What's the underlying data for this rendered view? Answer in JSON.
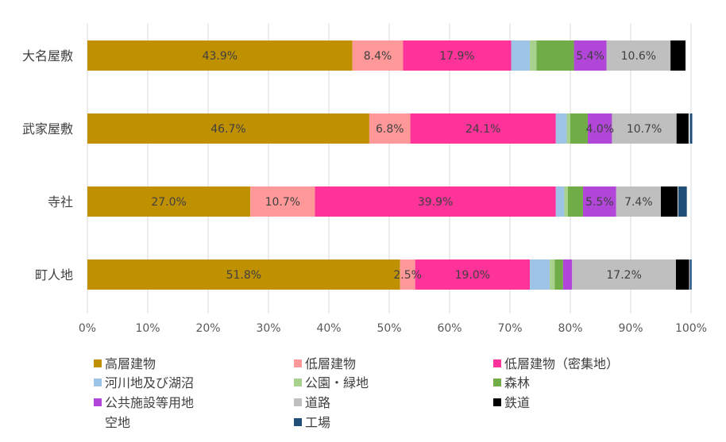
{
  "chart_data": {
    "type": "bar",
    "orientation": "horizontal",
    "stacked": "percent",
    "categories": [
      "大名屋敷",
      "武家屋敷",
      "寺社",
      "町人地"
    ],
    "xlim": [
      0,
      100
    ],
    "x_ticks": [
      "0%",
      "10%",
      "20%",
      "30%",
      "40%",
      "50%",
      "60%",
      "70%",
      "80%",
      "90%",
      "100%"
    ],
    "grid": "vertical",
    "legend_position": "bottom",
    "series": [
      {
        "name": "高層建物",
        "color": "#BF9000",
        "values": [
          43.9,
          46.7,
          27.0,
          51.8
        ],
        "labels": [
          "43.9%",
          "46.7%",
          "27.0%",
          "51.8%"
        ]
      },
      {
        "name": "低層建物",
        "color": "#FF9999",
        "values": [
          8.4,
          6.8,
          10.7,
          2.5
        ],
        "labels": [
          "8.4%",
          "6.8%",
          "10.7%",
          "2.5%"
        ]
      },
      {
        "name": "低層建物（密集地）",
        "color": "#FF3399",
        "values": [
          17.9,
          24.1,
          39.9,
          19.0
        ],
        "labels": [
          "17.9%",
          "24.1%",
          "39.9%",
          "19.0%"
        ]
      },
      {
        "name": "河川地及び湖沼",
        "color": "#9DC3E6",
        "values": [
          3.1,
          1.8,
          1.4,
          3.3
        ],
        "labels": [
          "",
          "",
          "",
          ""
        ]
      },
      {
        "name": "公園・緑地",
        "color": "#A9D18E",
        "values": [
          1.1,
          0.6,
          0.6,
          0.8
        ],
        "labels": [
          "",
          "",
          "",
          ""
        ]
      },
      {
        "name": "森林",
        "color": "#70AD47",
        "values": [
          6.2,
          2.9,
          2.5,
          1.4
        ],
        "labels": [
          "",
          "",
          "",
          ""
        ]
      },
      {
        "name": "公共施設等用地",
        "color": "#B146D8",
        "values": [
          5.4,
          4.0,
          5.5,
          1.5
        ],
        "labels": [
          "5.4%",
          "4.0%",
          "5.5%",
          ""
        ]
      },
      {
        "name": "道路",
        "color": "#BFBFBF",
        "values": [
          10.6,
          10.7,
          7.4,
          17.2
        ],
        "labels": [
          "10.6%",
          "10.7%",
          "7.4%",
          "17.2%"
        ]
      },
      {
        "name": "鉄道",
        "color": "#000000",
        "values": [
          2.5,
          2.0,
          2.8,
          2.2
        ],
        "labels": [
          "",
          "",
          "",
          ""
        ]
      },
      {
        "name": "空地",
        "color": "#FFFFFF",
        "values": [
          0.1,
          0.2,
          0.1,
          0.1
        ],
        "labels": [
          "",
          "",
          "",
          ""
        ]
      },
      {
        "name": "工場",
        "color": "#1F4E79",
        "values": [
          0.0,
          0.4,
          1.4,
          0.3
        ],
        "labels": [
          "",
          "",
          "",
          ""
        ]
      }
    ]
  }
}
